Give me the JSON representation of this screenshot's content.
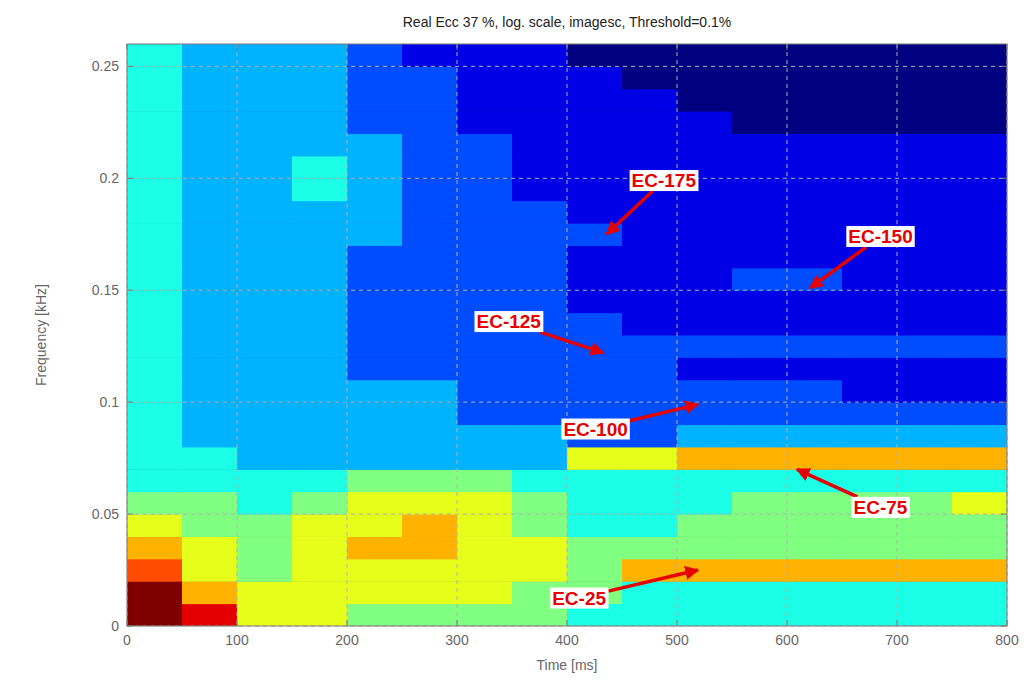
{
  "chart_data": {
    "type": "heatmap",
    "title": "Real Ecc 37 %, log. scale, imagesc, Threshold=0.1%",
    "x_label": "Time [ms]",
    "y_label": "Frequency [kHz]",
    "xlim": [
      0,
      800
    ],
    "ylim": [
      0,
      0.26
    ],
    "xticks": [
      0,
      100,
      200,
      300,
      400,
      500,
      600,
      700,
      800
    ],
    "yticks": [
      0,
      0.05,
      0.1,
      0.15,
      0.2,
      0.25
    ],
    "grid": true,
    "x_edges": [
      0,
      50,
      100,
      150,
      200,
      250,
      300,
      350,
      400,
      450,
      500,
      550,
      600,
      650,
      700,
      750,
      800
    ],
    "y_edges": [
      0,
      0.01,
      0.02,
      0.03,
      0.04,
      0.05,
      0.06,
      0.07,
      0.08,
      0.09,
      0.1,
      0.11,
      0.12,
      0.13,
      0.14,
      0.15,
      0.16,
      0.17,
      0.18,
      0.19,
      0.2,
      0.21,
      0.22,
      0.23,
      0.24,
      0.25,
      0.26
    ],
    "zlim": [
      0,
      10
    ],
    "z": [
      [
        10,
        9,
        6,
        6,
        5,
        5,
        5,
        5,
        4,
        4,
        4,
        4,
        4,
        4,
        4,
        4
      ],
      [
        10,
        7,
        6,
        6,
        6,
        6,
        6,
        5,
        5,
        4,
        4,
        4,
        4,
        4,
        4,
        4
      ],
      [
        8,
        6,
        5,
        6,
        6,
        6,
        6,
        6,
        5,
        7,
        7,
        7,
        7,
        7,
        7,
        7
      ],
      [
        7,
        6,
        5,
        6,
        7,
        7,
        6,
        6,
        5,
        5,
        5,
        5,
        5,
        5,
        5,
        5
      ],
      [
        6,
        5,
        5,
        6,
        6,
        7,
        6,
        5,
        4,
        4,
        5,
        5,
        5,
        5,
        5,
        5
      ],
      [
        5,
        5,
        4,
        5,
        6,
        6,
        6,
        5,
        4,
        4,
        4,
        5,
        5,
        5,
        5,
        6
      ],
      [
        4,
        4,
        4,
        4,
        5,
        5,
        5,
        4,
        4,
        4,
        4,
        4,
        4,
        4,
        4,
        4
      ],
      [
        4,
        4,
        3,
        3,
        3,
        3,
        3,
        3,
        6,
        6,
        7,
        7,
        7,
        7,
        7,
        7
      ],
      [
        4,
        3,
        3,
        3,
        3,
        3,
        3,
        3,
        2,
        2,
        3,
        3,
        3,
        3,
        3,
        3
      ],
      [
        4,
        3,
        3,
        3,
        3,
        3,
        2,
        2,
        2,
        2,
        2,
        2,
        2,
        2,
        2,
        2
      ],
      [
        4,
        3,
        3,
        3,
        3,
        3,
        2,
        2,
        2,
        2,
        2,
        2,
        2,
        1,
        1,
        1
      ],
      [
        4,
        3,
        3,
        3,
        2,
        2,
        2,
        2,
        2,
        2,
        1,
        1,
        1,
        1,
        1,
        1
      ],
      [
        4,
        3,
        3,
        3,
        2,
        2,
        2,
        2,
        2,
        2,
        2,
        2,
        2,
        2,
        2,
        2
      ],
      [
        4,
        3,
        3,
        3,
        2,
        2,
        2,
        2,
        2,
        1,
        1,
        1,
        1,
        1,
        1,
        1
      ],
      [
        4,
        3,
        3,
        3,
        2,
        2,
        2,
        2,
        1,
        1,
        1,
        1,
        1,
        1,
        1,
        1
      ],
      [
        4,
        3,
        3,
        3,
        2,
        2,
        2,
        2,
        1,
        1,
        1,
        2,
        2,
        1,
        1,
        1
      ],
      [
        4,
        3,
        3,
        3,
        2,
        2,
        2,
        2,
        1,
        1,
        1,
        1,
        1,
        1,
        1,
        1
      ],
      [
        4,
        3,
        3,
        3,
        3,
        2,
        2,
        2,
        2,
        1,
        1,
        1,
        1,
        1,
        1,
        1
      ],
      [
        4,
        3,
        3,
        3,
        3,
        2,
        2,
        2,
        1,
        1,
        1,
        1,
        1,
        1,
        1,
        1
      ],
      [
        4,
        3,
        3,
        4,
        3,
        2,
        2,
        1,
        1,
        1,
        1,
        1,
        1,
        1,
        1,
        1
      ],
      [
        4,
        3,
        3,
        4,
        3,
        2,
        2,
        1,
        1,
        1,
        1,
        1,
        1,
        1,
        1,
        1
      ],
      [
        4,
        3,
        3,
        3,
        3,
        2,
        2,
        1,
        1,
        1,
        1,
        1,
        1,
        1,
        1,
        1
      ],
      [
        4,
        3,
        3,
        3,
        2,
        2,
        1,
        1,
        1,
        1,
        1,
        0,
        0,
        0,
        0,
        0
      ],
      [
        4,
        3,
        3,
        3,
        2,
        2,
        1,
        1,
        1,
        1,
        0,
        0,
        0,
        0,
        0,
        0
      ],
      [
        4,
        3,
        3,
        3,
        2,
        2,
        1,
        1,
        1,
        0,
        0,
        0,
        0,
        0,
        0,
        0
      ],
      [
        4,
        3,
        3,
        3,
        2,
        1,
        1,
        1,
        0,
        0,
        0,
        0,
        0,
        0,
        0,
        0
      ]
    ],
    "annotations": [
      {
        "text": "EC-175",
        "x": 436,
        "y": 0.175,
        "text_x": 488,
        "text_y": 0.199
      },
      {
        "text": "EC-150",
        "x": 621,
        "y": 0.151,
        "text_x": 685,
        "text_y": 0.174
      },
      {
        "text": "EC-125",
        "x": 433,
        "y": 0.122,
        "text_x": 347,
        "text_y": 0.136
      },
      {
        "text": "EC-100",
        "x": 519,
        "y": 0.099,
        "text_x": 426,
        "text_y": 0.088
      },
      {
        "text": "EC-75",
        "x": 609,
        "y": 0.07,
        "text_x": 685,
        "text_y": 0.053
      },
      {
        "text": "EC-25",
        "x": 519,
        "y": 0.025,
        "text_x": 411,
        "text_y": 0.0125
      }
    ]
  }
}
